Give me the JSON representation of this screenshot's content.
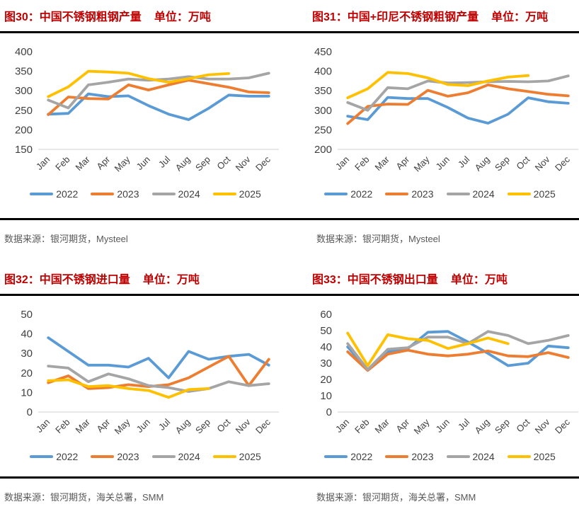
{
  "colors": {
    "title_red": "#C00000",
    "axis_label": "#404040",
    "axis_line": "#D9D9D9",
    "source_text": "#595959",
    "divider": "#000000",
    "series_2022": "#5B9BD5",
    "series_2023": "#ED7D31",
    "series_2024": "#A5A5A5",
    "series_2025": "#FFC000"
  },
  "chart_data": [
    {
      "type": "line",
      "title": "图30：中国不锈钢粗钢产量",
      "unit": "单位：万吨",
      "source": "数据来源：银河期货，Mysteel",
      "categories": [
        "Jan",
        "Feb",
        "Mar",
        "Apr",
        "May",
        "Jun",
        "Jul",
        "Aug",
        "Sep",
        "Oct",
        "Nov",
        "Dec"
      ],
      "ylim": [
        150,
        400
      ],
      "ytick_step": 50,
      "grid": false,
      "legend_position": "bottom",
      "series": [
        {
          "name": "2022",
          "color": "#5B9BD5",
          "values": [
            240,
            242,
            292,
            285,
            287,
            262,
            240,
            226,
            255,
            289,
            286,
            286
          ]
        },
        {
          "name": "2023",
          "color": "#ED7D31",
          "values": [
            239,
            284,
            280,
            279,
            315,
            302,
            315,
            327,
            318,
            309,
            297,
            295
          ]
        },
        {
          "name": "2024",
          "color": "#A5A5A5",
          "values": [
            276,
            256,
            315,
            322,
            330,
            327,
            330,
            336,
            330,
            330,
            333,
            345
          ]
        },
        {
          "name": "2025",
          "color": "#FFC000",
          "values": [
            285,
            310,
            350,
            348,
            345,
            331,
            322,
            331,
            341,
            344
          ]
        }
      ]
    },
    {
      "type": "line",
      "title": "图31：中国+印尼不锈钢粗钢产量",
      "unit": "单位：万吨",
      "source": "数据来源：银河期货，Mysteel",
      "categories": [
        "Jan",
        "Feb",
        "Mar",
        "Apr",
        "May",
        "Jun",
        "Jul",
        "Aug",
        "Sep",
        "Oct",
        "Nov",
        "Dec"
      ],
      "ylim": [
        200,
        450
      ],
      "ytick_step": 50,
      "grid": false,
      "legend_position": "bottom",
      "series": [
        {
          "name": "2022",
          "color": "#5B9BD5",
          "values": [
            285,
            276,
            333,
            330,
            330,
            307,
            280,
            267,
            290,
            332,
            322,
            318
          ]
        },
        {
          "name": "2023",
          "color": "#ED7D31",
          "values": [
            266,
            310,
            316,
            315,
            351,
            336,
            345,
            365,
            355,
            348,
            341,
            337
          ]
        },
        {
          "name": "2024",
          "color": "#A5A5A5",
          "values": [
            320,
            300,
            358,
            355,
            375,
            370,
            371,
            373,
            374,
            373,
            375,
            388
          ]
        },
        {
          "name": "2025",
          "color": "#FFC000",
          "values": [
            332,
            355,
            397,
            394,
            383,
            366,
            363,
            375,
            385,
            389
          ]
        }
      ]
    },
    {
      "type": "line",
      "title": "图32：中国不锈钢进口量",
      "unit": "单位：万吨",
      "source": "数据来源：银河期货，海关总署，SMM",
      "categories": [
        "Jan",
        "Feb",
        "Mar",
        "Apr",
        "May",
        "Jun",
        "Jul",
        "Aug",
        "Sep",
        "Oct",
        "Nov",
        "Dec"
      ],
      "ylim": [
        0,
        50
      ],
      "ytick_step": 10,
      "grid": false,
      "legend_position": "bottom",
      "series": [
        {
          "name": "2022",
          "color": "#5B9BD5",
          "values": [
            38,
            31,
            24,
            24,
            23,
            27.5,
            17.5,
            31,
            27,
            28.5,
            29.5,
            24
          ]
        },
        {
          "name": "2023",
          "color": "#ED7D31",
          "values": [
            15,
            18.5,
            12,
            12.5,
            14,
            13,
            14,
            17.5,
            23,
            28.5,
            13.5,
            27
          ]
        },
        {
          "name": "2024",
          "color": "#A5A5A5",
          "values": [
            23.5,
            22.5,
            15.5,
            19.5,
            17,
            13.5,
            12.5,
            10.5,
            12,
            15.5,
            13.5,
            14.5
          ]
        },
        {
          "name": "2025",
          "color": "#FFC000",
          "values": [
            16,
            16.5,
            13,
            13.5,
            12,
            11,
            7.5,
            11.5,
            12
          ]
        }
      ]
    },
    {
      "type": "line",
      "title": "图33：中国不锈钢出口量",
      "unit": "单位：万吨",
      "source": "数据来源：银河期货，海关总署，SMM",
      "categories": [
        "Jan",
        "Feb",
        "Mar",
        "Apr",
        "May",
        "Jun",
        "Jul",
        "Aug",
        "Sep",
        "Oct",
        "Nov",
        "Dec"
      ],
      "ylim": [
        0,
        60
      ],
      "ytick_step": 10,
      "grid": false,
      "legend_position": "bottom",
      "series": [
        {
          "name": "2022",
          "color": "#5B9BD5",
          "values": [
            40,
            26,
            37,
            39,
            49,
            49.5,
            43,
            36,
            28.5,
            30,
            40.5,
            39.5
          ]
        },
        {
          "name": "2023",
          "color": "#ED7D31",
          "values": [
            37,
            25.5,
            35.5,
            38,
            35.5,
            34.5,
            35.5,
            37.5,
            34.5,
            34,
            36.5,
            33.5
          ]
        },
        {
          "name": "2024",
          "color": "#A5A5A5",
          "values": [
            42,
            26,
            38.5,
            39.5,
            46,
            46,
            42,
            49.5,
            47,
            42,
            44,
            47
          ]
        },
        {
          "name": "2025",
          "color": "#FFC000",
          "values": [
            48.5,
            28.5,
            47.5,
            45,
            44,
            39,
            42,
            45.5,
            42
          ]
        }
      ]
    }
  ]
}
